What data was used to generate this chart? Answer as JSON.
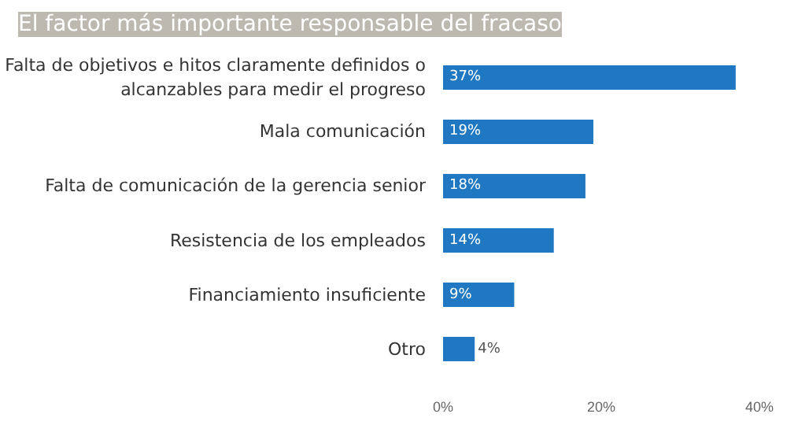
{
  "chart_data": {
    "type": "bar",
    "orientation": "horizontal",
    "title": "El factor más importante responsable del fracaso",
    "categories": [
      "Falta de objetivos e hitos claramente definidos o alcanzables para medir el progreso",
      "Mala comunicación",
      "Falta de comunicación de la gerencia senior",
      "Resistencia de los empleados",
      "Financiamiento insuficiente",
      "Otro"
    ],
    "values": [
      37,
      19,
      18,
      14,
      9,
      4
    ],
    "value_labels": [
      "37%",
      "19%",
      "18%",
      "14%",
      "9%",
      "4%"
    ],
    "color": "#1f78c1",
    "xlim": [
      0,
      40
    ],
    "xticks": [
      {
        "value": 0,
        "label": "0%"
      },
      {
        "value": 20,
        "label": "20%"
      },
      {
        "value": 40,
        "label": "40%"
      }
    ],
    "grid": false
  }
}
